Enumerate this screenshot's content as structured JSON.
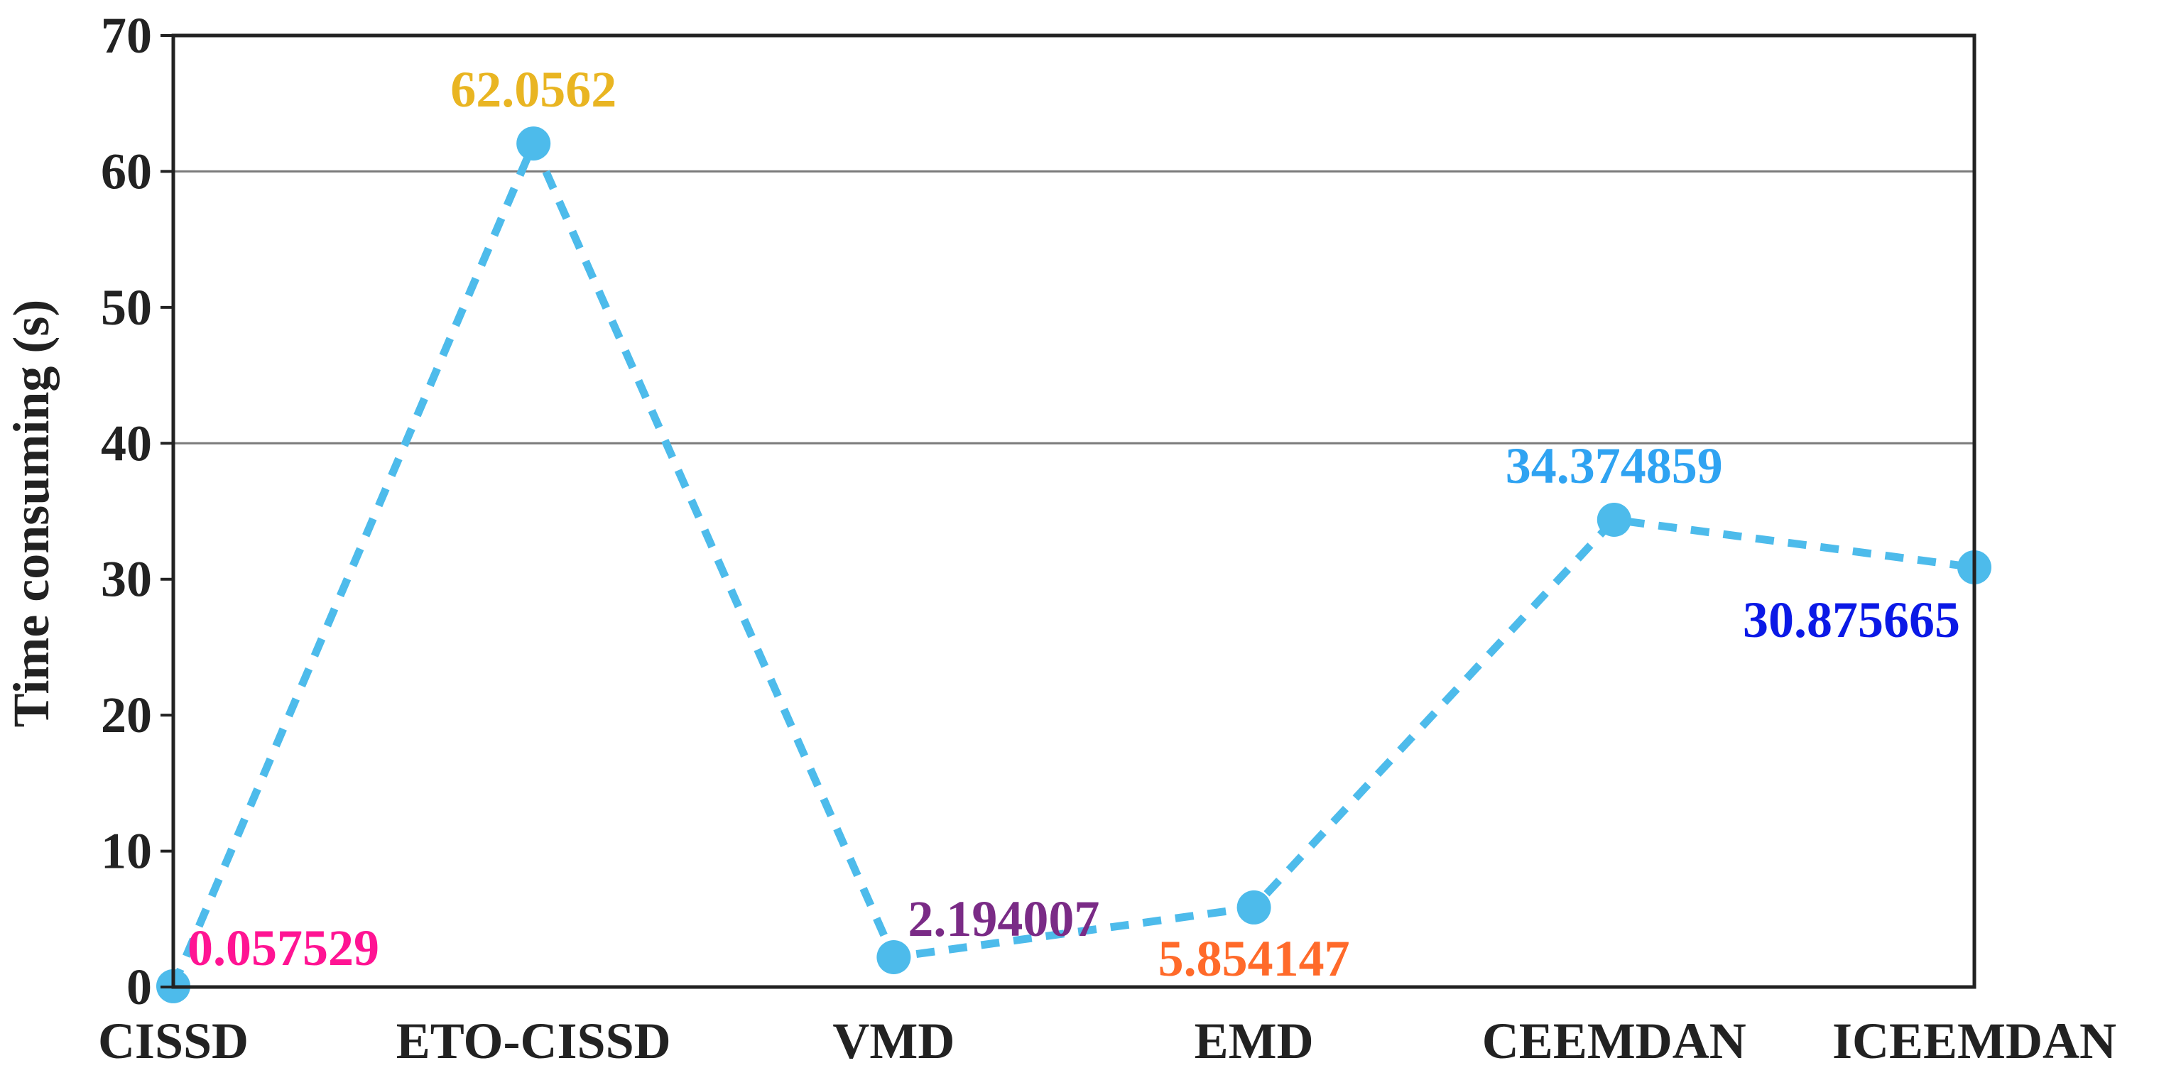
{
  "chart_data": {
    "type": "line",
    "title": "",
    "xlabel": "",
    "ylabel": "Time consuming (s)",
    "categories": [
      "CISSD",
      "ETO-CISSD",
      "VMD",
      "EMD",
      "CEEMDAN",
      "ICEEMDAN"
    ],
    "series": [
      {
        "values": [
          0.057529,
          62.0562,
          2.194007,
          5.854147,
          34.374859,
          30.875665
        ],
        "color": "#4DBBEB",
        "line_style": "dashed",
        "marker": "circle"
      }
    ],
    "data_labels": [
      {
        "text": "0.057529",
        "color": "#FF1493",
        "placement": "upper-right"
      },
      {
        "text": "62.0562",
        "color": "#E9B522",
        "placement": "above"
      },
      {
        "text": "2.194007",
        "color": "#7A2B86",
        "placement": "upper-right"
      },
      {
        "text": "5.854147",
        "color": "#FF6A2A",
        "placement": "below"
      },
      {
        "text": "34.374859",
        "color": "#2FA3F2",
        "placement": "above"
      },
      {
        "text": "30.875665",
        "color": "#0B19E6",
        "placement": "lower-left"
      }
    ],
    "ylim": [
      0,
      70
    ],
    "yticks": [
      0,
      10,
      20,
      30,
      40,
      50,
      60,
      70
    ],
    "gridlines_y": [
      40,
      60
    ],
    "legend": "none",
    "colors": {
      "axis": "#222222",
      "grid": "#7A7A7A",
      "text": "#222222"
    }
  }
}
